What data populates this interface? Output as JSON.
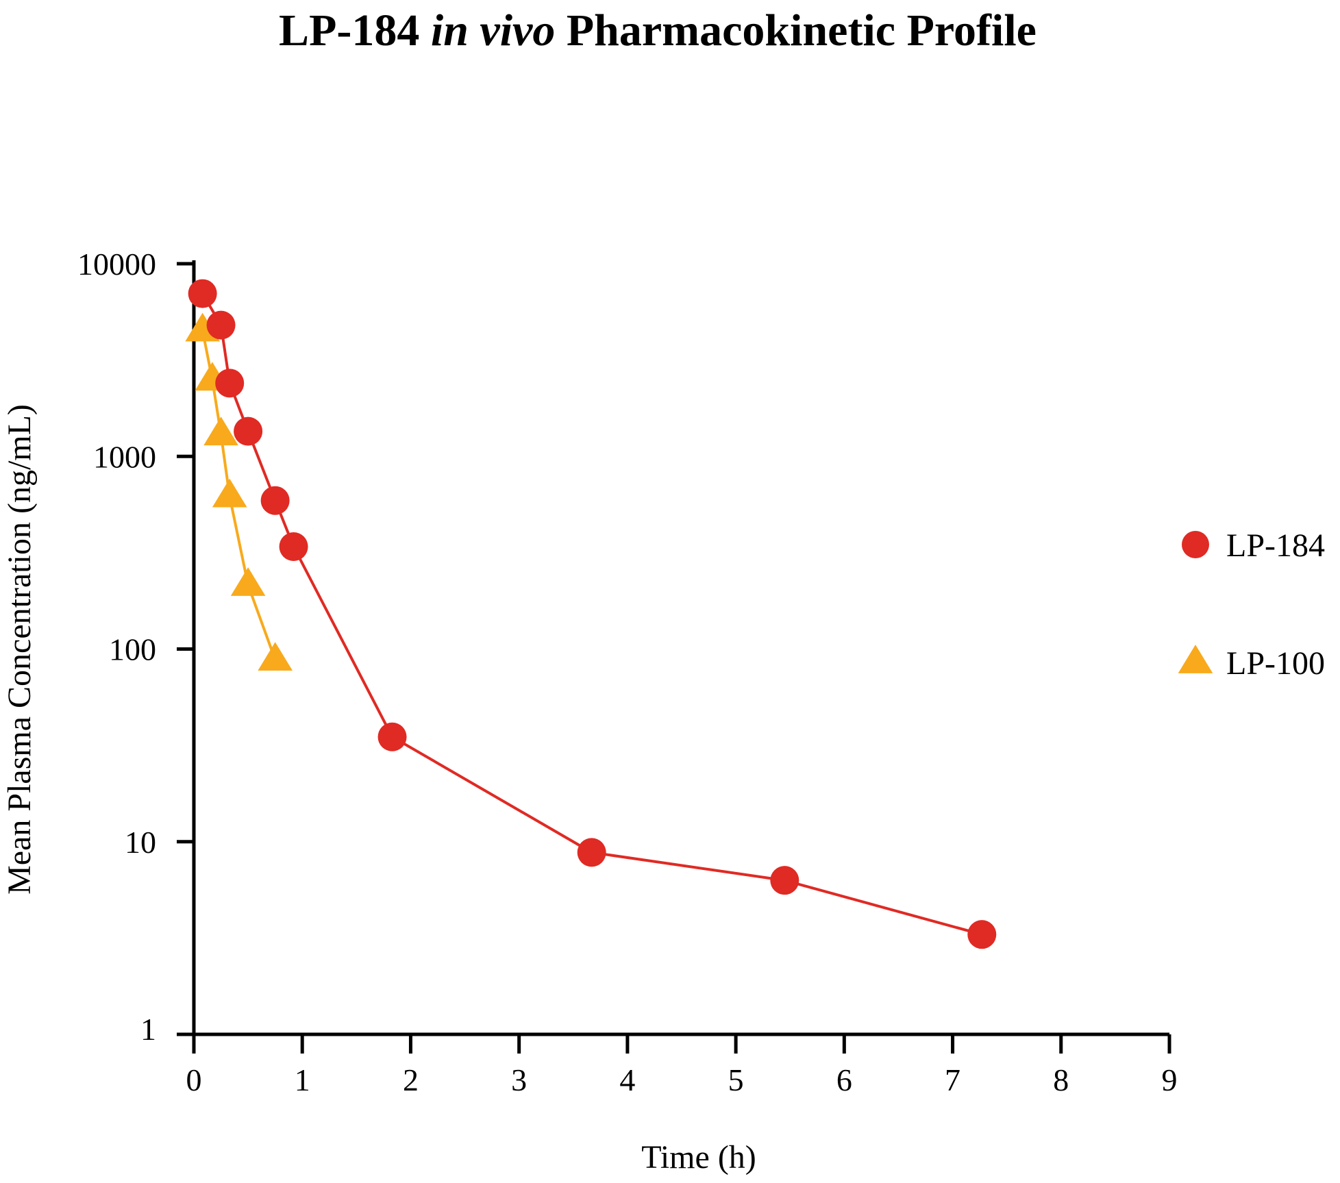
{
  "chart_data": {
    "type": "line",
    "title": {
      "part1": "LP-184 ",
      "part2_italic": "in vivo",
      "part3": " Pharmacokinetic Profile"
    },
    "xlabel": "Time (h)",
    "ylabel": "Mean Plasma Concentration (ng/mL)",
    "xlim": [
      0,
      9
    ],
    "ylim": [
      1,
      10000
    ],
    "y_scale": "log",
    "x_ticks": [
      "0",
      "1",
      "2",
      "3",
      "4",
      "5",
      "6",
      "7",
      "8",
      "9"
    ],
    "y_ticks": [
      "1",
      "10",
      "100",
      "1000",
      "10000"
    ],
    "grid": false,
    "legend_position": "right",
    "series": [
      {
        "name": "LP-184",
        "color": "#e02a24",
        "marker": "circle",
        "points": [
          {
            "x": 0.08,
            "y": 7000
          },
          {
            "x": 0.25,
            "y": 4800
          },
          {
            "x": 0.33,
            "y": 2400
          },
          {
            "x": 0.5,
            "y": 1350
          },
          {
            "x": 0.75,
            "y": 590
          },
          {
            "x": 0.92,
            "y": 340
          },
          {
            "x": 1.83,
            "y": 35
          },
          {
            "x": 3.67,
            "y": 8.8
          },
          {
            "x": 5.45,
            "y": 6.3
          },
          {
            "x": 7.27,
            "y": 3.3
          }
        ]
      },
      {
        "name": "LP-100",
        "color": "#f8aa1c",
        "marker": "triangle",
        "points": [
          {
            "x": 0.08,
            "y": 4500
          },
          {
            "x": 0.17,
            "y": 2500
          },
          {
            "x": 0.25,
            "y": 1300
          },
          {
            "x": 0.33,
            "y": 620
          },
          {
            "x": 0.5,
            "y": 215
          },
          {
            "x": 0.75,
            "y": 88
          }
        ]
      }
    ]
  }
}
